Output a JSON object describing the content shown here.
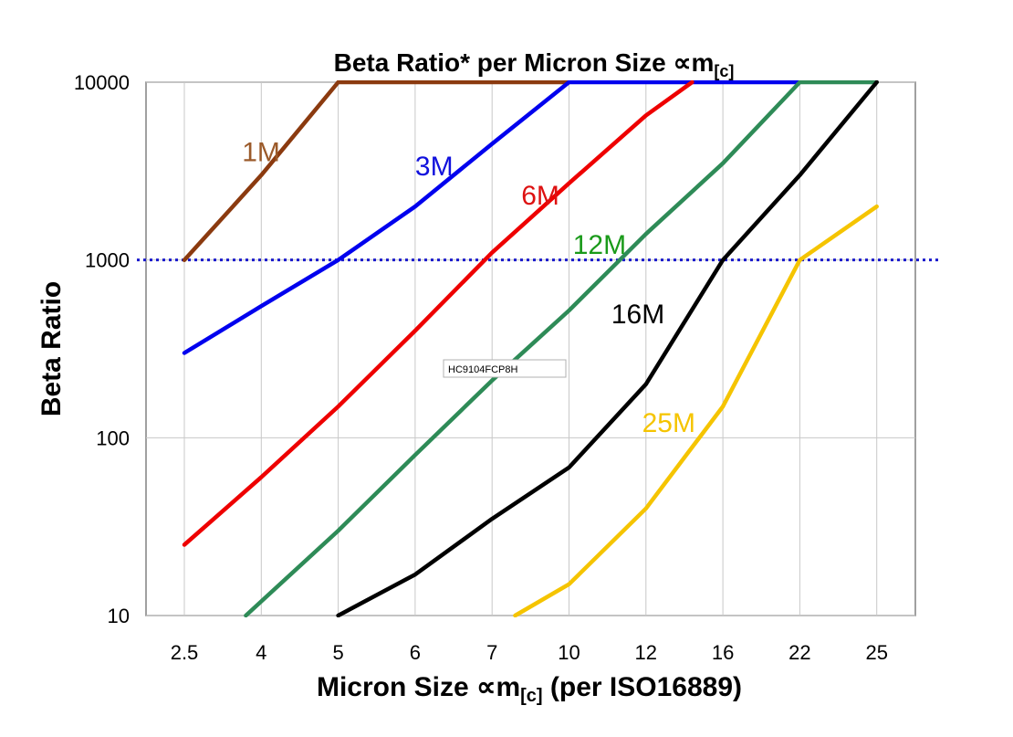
{
  "chart_data": {
    "type": "line",
    "title_main": "Beta Ratio* per Micron Size ",
    "title_symbol": "∝m",
    "title_sub": "[c]",
    "xlabel_main": "Micron Size ",
    "xlabel_symbol": "∝m",
    "xlabel_sub": "[c]",
    "xlabel_tail": " (per ISO16889)",
    "ylabel": "Beta Ratio",
    "y_scale": "log",
    "ylim": [
      10,
      10000
    ],
    "y_ticks": [
      {
        "value": 10,
        "label": "10"
      },
      {
        "value": 100,
        "label": "100"
      },
      {
        "value": 1000,
        "label": "1000"
      },
      {
        "value": 10000,
        "label": "10000"
      }
    ],
    "categories": [
      "2.5",
      "4",
      "5",
      "6",
      "7",
      "10",
      "12",
      "16",
      "22",
      "25"
    ],
    "reference_line": {
      "value": 1000,
      "color": "#1a1acc"
    },
    "tooltip": "HC9104FCP8H",
    "series": [
      {
        "name": "1M",
        "color": "#8b3a0f",
        "label_color": "#9b5a2a",
        "points": [
          [
            0,
            1000
          ],
          [
            1,
            3000
          ],
          [
            2,
            10000
          ],
          [
            5,
            10000
          ]
        ]
      },
      {
        "name": "3M",
        "color": "#0000ee",
        "label_color": "#1111dd",
        "points": [
          [
            0,
            300
          ],
          [
            1,
            550
          ],
          [
            2,
            1000
          ],
          [
            3,
            2000
          ],
          [
            4,
            4500
          ],
          [
            5,
            10000
          ],
          [
            8,
            10000
          ]
        ]
      },
      {
        "name": "6M",
        "color": "#ee0000",
        "label_color": "#dd1111",
        "points": [
          [
            0,
            25
          ],
          [
            1,
            60
          ],
          [
            2,
            150
          ],
          [
            3,
            400
          ],
          [
            4,
            1100
          ],
          [
            5,
            2700
          ],
          [
            6,
            6500
          ],
          [
            6.6,
            10000
          ]
        ]
      },
      {
        "name": "12M",
        "color": "#2e8b57",
        "label_color": "#1a9a1a",
        "points": [
          [
            0.8,
            10
          ],
          [
            2,
            30
          ],
          [
            3,
            80
          ],
          [
            4,
            210
          ],
          [
            5,
            520
          ],
          [
            6,
            1400
          ],
          [
            7,
            3500
          ],
          [
            8,
            10000
          ],
          [
            9,
            10000
          ]
        ]
      },
      {
        "name": "16M",
        "color": "#000000",
        "label_color": "#000000",
        "points": [
          [
            2,
            10
          ],
          [
            3,
            17
          ],
          [
            4,
            35
          ],
          [
            5,
            68
          ],
          [
            6,
            200
          ],
          [
            7,
            1000
          ],
          [
            8,
            3000
          ],
          [
            9,
            10000
          ]
        ]
      },
      {
        "name": "25M",
        "color": "#f5c400",
        "label_color": "#f5c400",
        "points": [
          [
            4.3,
            10
          ],
          [
            5,
            15
          ],
          [
            6,
            40
          ],
          [
            7,
            150
          ],
          [
            8,
            1000
          ],
          [
            9,
            2000
          ]
        ]
      }
    ],
    "label_anchors": [
      {
        "name": "1M",
        "x": 0.75,
        "y": 3600
      },
      {
        "name": "3M",
        "x": 3.0,
        "y": 3000
      },
      {
        "name": "6M",
        "x": 4.38,
        "y": 2050
      },
      {
        "name": "12M",
        "x": 5.05,
        "y": 1080
      },
      {
        "name": "16M",
        "x": 5.55,
        "y": 440
      },
      {
        "name": "25M",
        "x": 5.95,
        "y": 108
      }
    ]
  }
}
